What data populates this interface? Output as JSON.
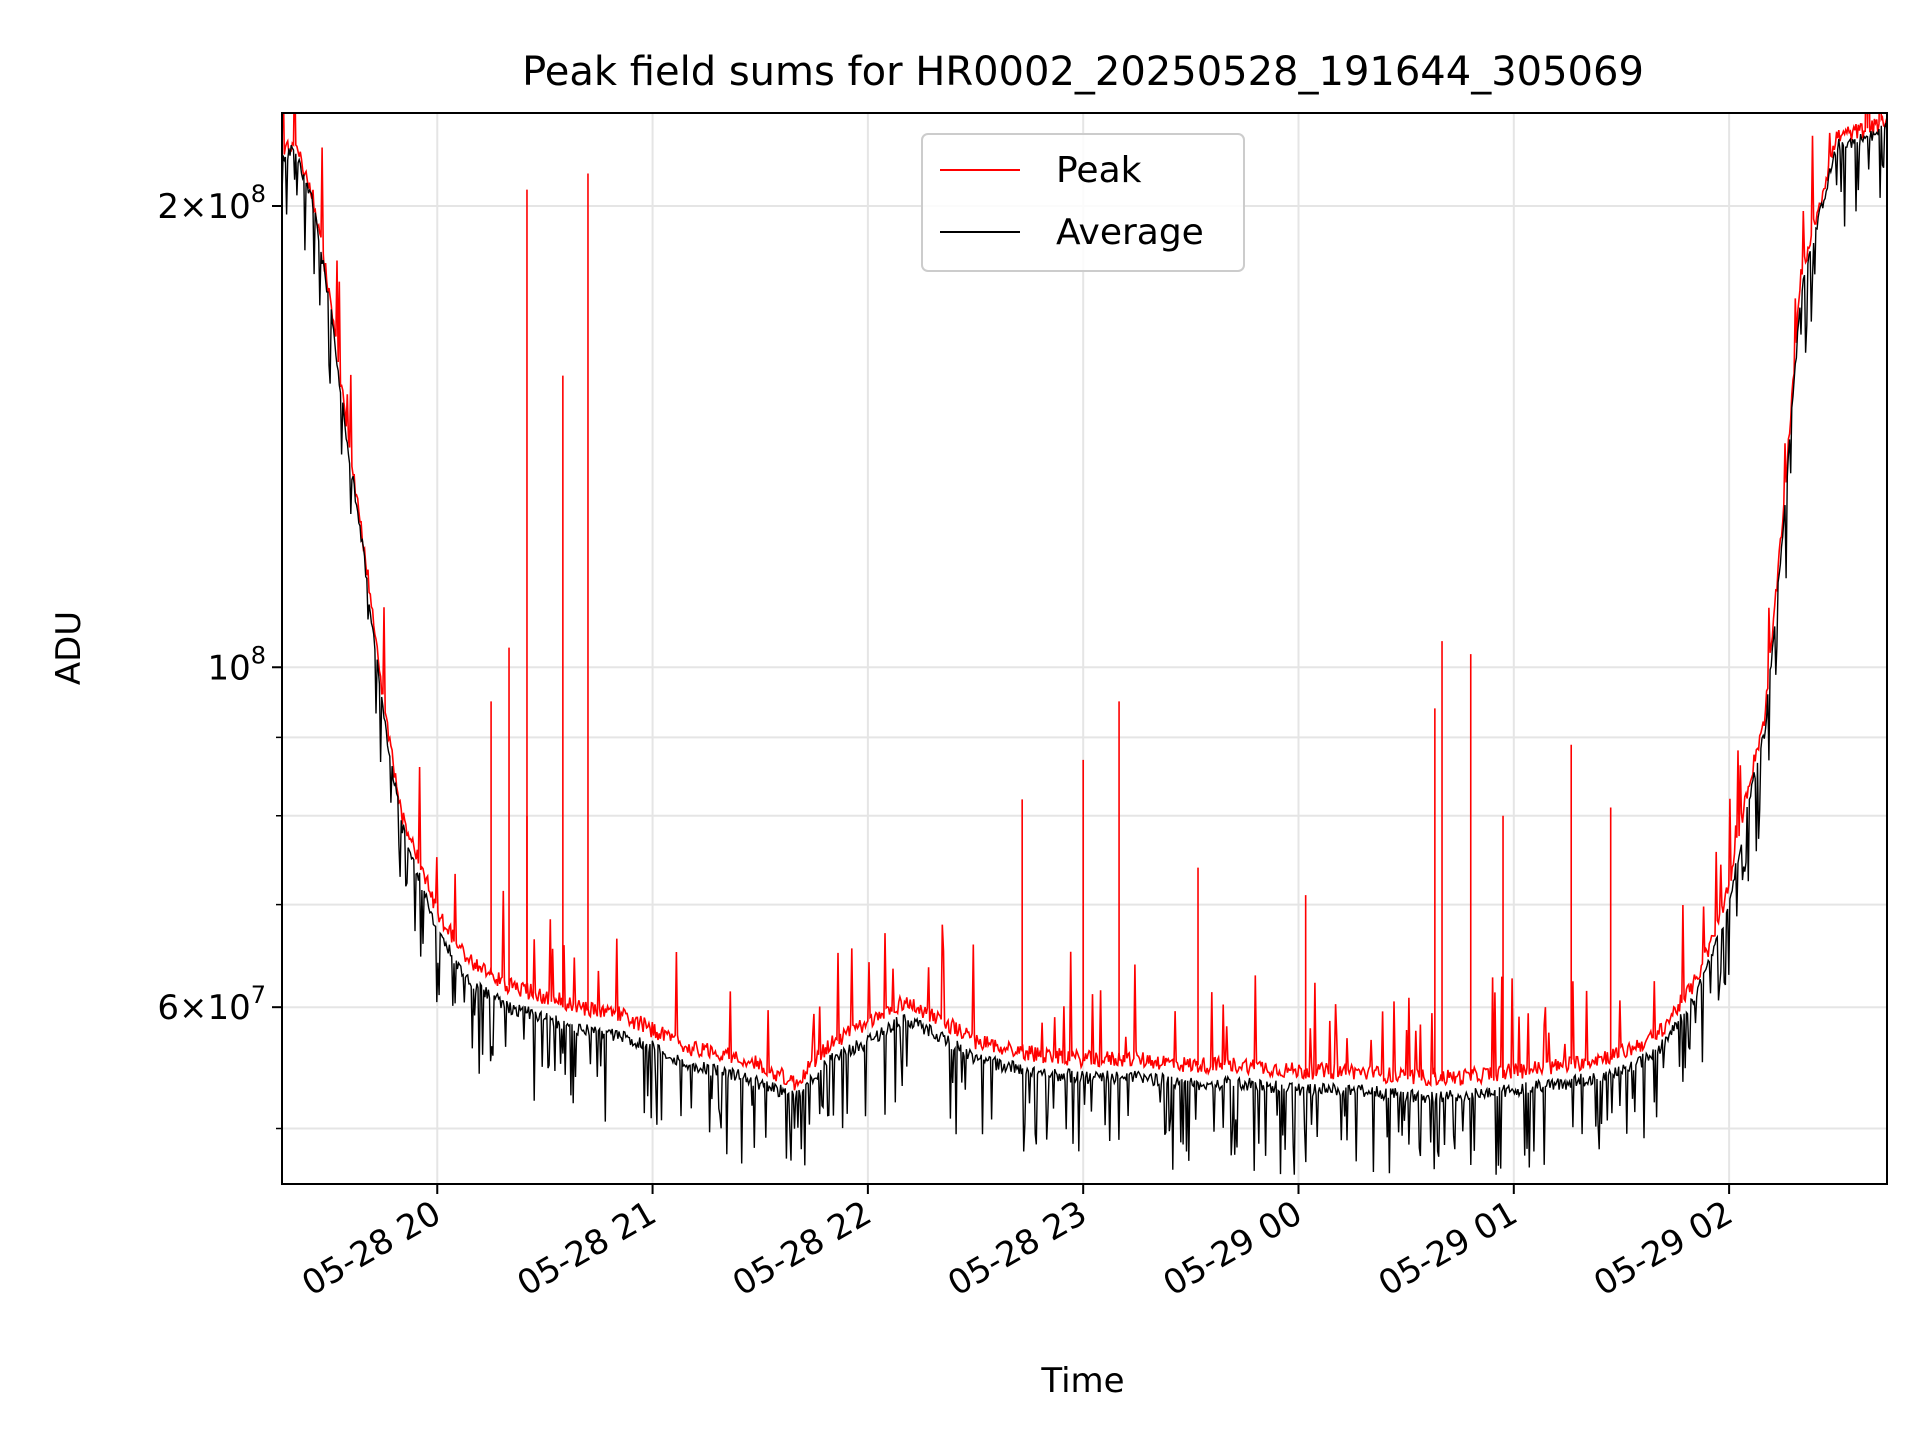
{
  "chart_data": {
    "type": "line",
    "title": "Peak field sums for HR0002_20250528_191644_305069",
    "xlabel": "Time",
    "ylabel": "ADU",
    "yscale": "log",
    "xlim": [
      "2025-05-28 19:16:44",
      "2025-05-29 02:44:00"
    ],
    "ylim": [
      46000000,
      230000000
    ],
    "grid": true,
    "legend": "upper center",
    "x_ticks": [
      "05-28 20",
      "05-28 21",
      "05-28 22",
      "05-28 23",
      "05-29 00",
      "05-29 01",
      "05-29 02"
    ],
    "y_ticks": [
      {
        "value": 200000000,
        "base": "2×10",
        "exp": "8"
      },
      {
        "value": 100000000,
        "base": "10",
        "exp": "8"
      },
      {
        "value": 60000000,
        "base": "6×10",
        "exp": "7"
      }
    ],
    "y_minor_ticks": [
      50000000,
      70000000,
      80000000,
      90000000
    ],
    "series_colors": {
      "Peak": "#ff0000",
      "Average": "#000000"
    },
    "series": [
      {
        "name": "Peak",
        "color": "#ff0000",
        "x": [
          "2025-05-28 19:16",
          "2025-05-28 19:20",
          "2025-05-28 19:25",
          "2025-05-28 19:30",
          "2025-05-28 19:35",
          "2025-05-28 19:40",
          "2025-05-28 19:45",
          "2025-05-28 19:50",
          "2025-05-28 19:55",
          "2025-05-28 20:00",
          "2025-05-28 20:10",
          "2025-05-28 20:20",
          "2025-05-28 20:30",
          "2025-05-28 20:40",
          "2025-05-28 20:50",
          "2025-05-28 21:00",
          "2025-05-28 21:10",
          "2025-05-28 21:20",
          "2025-05-28 21:30",
          "2025-05-28 21:40",
          "2025-05-28 21:50",
          "2025-05-28 22:00",
          "2025-05-28 22:10",
          "2025-05-28 22:20",
          "2025-05-28 22:30",
          "2025-05-28 22:45",
          "2025-05-28 23:00",
          "2025-05-28 23:15",
          "2025-05-28 23:30",
          "2025-05-28 23:45",
          "2025-05-29 00:00",
          "2025-05-29 00:15",
          "2025-05-29 00:30",
          "2025-05-29 00:45",
          "2025-05-29 01:00",
          "2025-05-29 01:15",
          "2025-05-29 01:30",
          "2025-05-29 01:40",
          "2025-05-29 01:50",
          "2025-05-29 01:55",
          "2025-05-29 02:00",
          "2025-05-29 02:05",
          "2025-05-29 02:10",
          "2025-05-29 02:15",
          "2025-05-29 02:20",
          "2025-05-29 02:30",
          "2025-05-29 02:40",
          "2025-05-29 02:44"
        ],
        "values": [
          215000000,
          220000000,
          205000000,
          175000000,
          142000000,
          118000000,
          95000000,
          80000000,
          75000000,
          69000000,
          64000000,
          62000000,
          61000000,
          60000000,
          59500000,
          58000000,
          56500000,
          56000000,
          55000000,
          53500000,
          57000000,
          58500000,
          60500000,
          59000000,
          57000000,
          56000000,
          55500000,
          55500000,
          55000000,
          55000000,
          54500000,
          54500000,
          54000000,
          54000000,
          54500000,
          55000000,
          56000000,
          57500000,
          62000000,
          66000000,
          72000000,
          83000000,
          93000000,
          125000000,
          180000000,
          222000000,
          225000000,
          228000000
        ],
        "spikes": [
          {
            "x": "2025-05-28 20:15",
            "y": 95000000
          },
          {
            "x": "2025-05-28 20:20",
            "y": 103000000
          },
          {
            "x": "2025-05-28 20:25",
            "y": 80000000
          },
          {
            "x": "2025-05-28 20:25",
            "y": 205000000
          },
          {
            "x": "2025-05-28 20:35",
            "y": 155000000
          },
          {
            "x": "2025-05-28 20:42",
            "y": 210000000
          },
          {
            "x": "2025-05-28 22:43",
            "y": 82000000
          },
          {
            "x": "2025-05-28 23:00",
            "y": 87000000
          },
          {
            "x": "2025-05-28 23:10",
            "y": 95000000
          },
          {
            "x": "2025-05-28 23:32",
            "y": 74000000
          },
          {
            "x": "2025-05-29 00:02",
            "y": 71000000
          },
          {
            "x": "2025-05-29 00:38",
            "y": 94000000
          },
          {
            "x": "2025-05-29 00:40",
            "y": 104000000
          },
          {
            "x": "2025-05-29 00:48",
            "y": 102000000
          },
          {
            "x": "2025-05-29 00:57",
            "y": 80000000
          },
          {
            "x": "2025-05-29 01:16",
            "y": 89000000
          },
          {
            "x": "2025-05-29 01:27",
            "y": 81000000
          }
        ]
      },
      {
        "name": "Average",
        "color": "#000000",
        "x": [
          "2025-05-28 19:16",
          "2025-05-28 19:20",
          "2025-05-28 19:25",
          "2025-05-28 19:30",
          "2025-05-28 19:35",
          "2025-05-28 19:40",
          "2025-05-28 19:45",
          "2025-05-28 19:50",
          "2025-05-28 19:55",
          "2025-05-28 20:00",
          "2025-05-28 20:10",
          "2025-05-28 20:20",
          "2025-05-28 20:30",
          "2025-05-28 20:40",
          "2025-05-28 20:50",
          "2025-05-28 21:00",
          "2025-05-28 21:10",
          "2025-05-28 21:20",
          "2025-05-28 21:30",
          "2025-05-28 21:40",
          "2025-05-28 21:50",
          "2025-05-28 22:00",
          "2025-05-28 22:10",
          "2025-05-28 22:20",
          "2025-05-28 22:30",
          "2025-05-28 22:45",
          "2025-05-28 23:00",
          "2025-05-28 23:15",
          "2025-05-28 23:30",
          "2025-05-28 23:45",
          "2025-05-29 00:00",
          "2025-05-29 00:15",
          "2025-05-29 00:30",
          "2025-05-29 00:45",
          "2025-05-29 01:00",
          "2025-05-29 01:15",
          "2025-05-29 01:30",
          "2025-05-29 01:40",
          "2025-05-29 01:50",
          "2025-05-29 01:55",
          "2025-05-29 02:00",
          "2025-05-29 02:05",
          "2025-05-29 02:10",
          "2025-05-29 02:15",
          "2025-05-29 02:20",
          "2025-05-29 02:30",
          "2025-05-29 02:40",
          "2025-05-29 02:44"
        ],
        "values": [
          213000000,
          218000000,
          203000000,
          173000000,
          140000000,
          116000000,
          93000000,
          79000000,
          73000000,
          67000000,
          62000000,
          60000000,
          59000000,
          58000000,
          57500000,
          56500000,
          55000000,
          54500000,
          53500000,
          52500000,
          55500000,
          57000000,
          59000000,
          57500000,
          55500000,
          54500000,
          54000000,
          54000000,
          53500000,
          53500000,
          53000000,
          53000000,
          52500000,
          52500000,
          53000000,
          53500000,
          54500000,
          56000000,
          60500000,
          64500000,
          70000000,
          81000000,
          91000000,
          122000000,
          176000000,
          219000000,
          222000000,
          225000000
        ]
      }
    ]
  }
}
